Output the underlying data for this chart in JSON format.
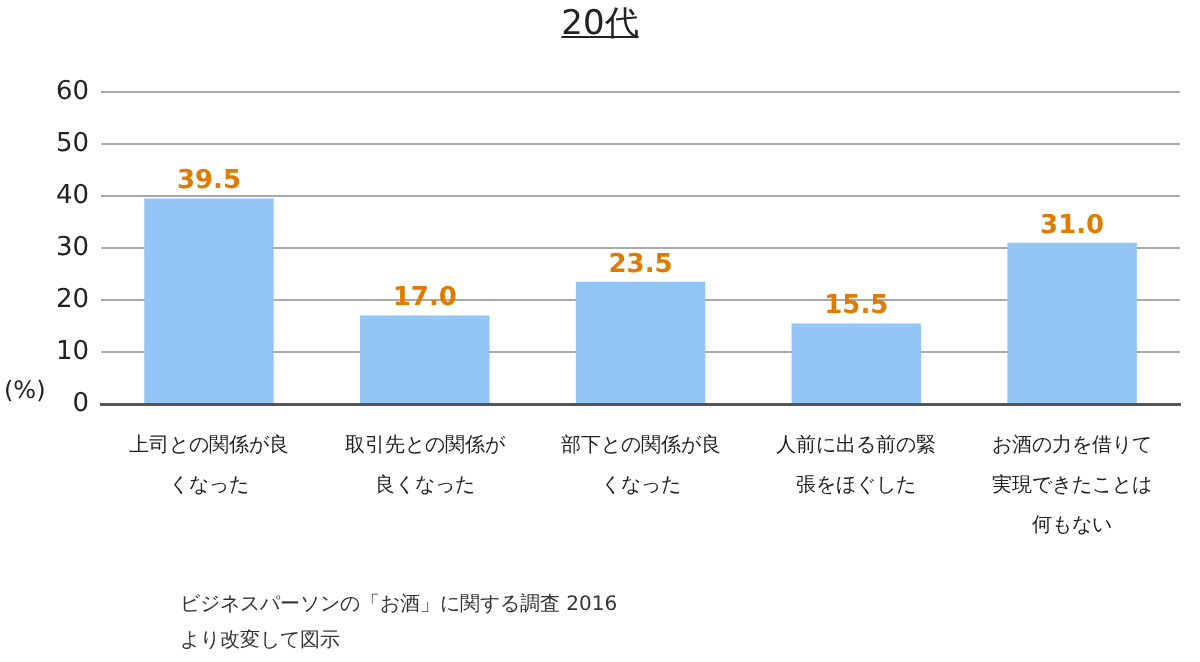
{
  "chart_data": {
    "type": "bar",
    "title": "20代",
    "ylabel": "(%)",
    "categories": [
      "上司との関係が良くなった",
      "取引先との関係が良くなった",
      "部下との関係が良くなった",
      "人前に出る前の緊張をほぐした",
      "お酒の力を借りて実現できたことは何もない"
    ],
    "values": [
      39.5,
      17.0,
      23.5,
      15.5,
      31.0
    ],
    "value_labels": [
      "39.5",
      "17.0",
      "23.5",
      "15.5",
      "31.0"
    ],
    "color": "#93c6f4",
    "ylim": [
      0,
      60
    ],
    "yticks": [
      0,
      10,
      20,
      30,
      40,
      50,
      60
    ],
    "grid": "y",
    "legend": false,
    "annotations": [
      "ビジネスパーソンの「お酒」に関する調査 2016\nより改変して図示"
    ]
  }
}
